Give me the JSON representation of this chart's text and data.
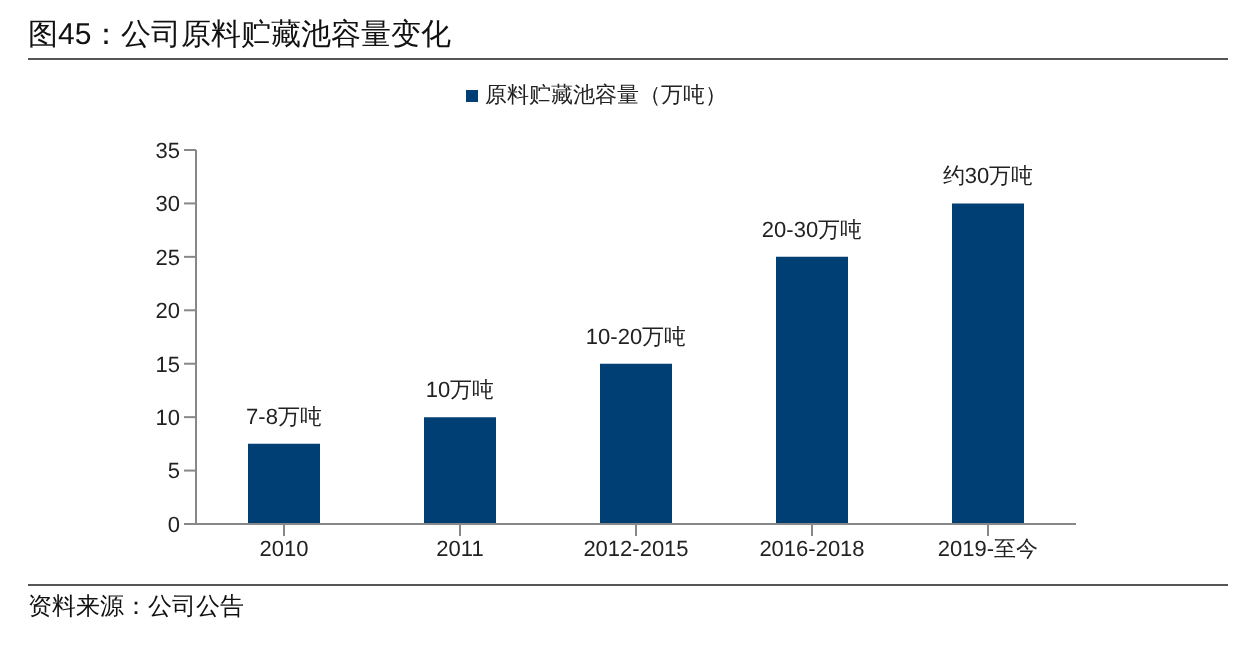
{
  "chart_data": {
    "type": "bar",
    "title": "图45：公司原料贮藏池容量变化",
    "categories": [
      "2010",
      "2011",
      "2012-2015",
      "2016-2018",
      "2019-至今"
    ],
    "series": [
      {
        "name": "原料贮藏池容量（万吨）",
        "color": "#003f73",
        "values": [
          7.5,
          10,
          15,
          25,
          30
        ],
        "value_labels": [
          "7-8万吨",
          "10万吨",
          "10-20万吨",
          "20-30万吨",
          "约30万吨"
        ]
      }
    ],
    "ylim": [
      0,
      35
    ],
    "yticks": [
      0,
      5,
      10,
      15,
      20,
      25,
      30,
      35
    ],
    "grid": false,
    "legend": "top",
    "annotations": [
      "资料来源：公司公告"
    ]
  }
}
